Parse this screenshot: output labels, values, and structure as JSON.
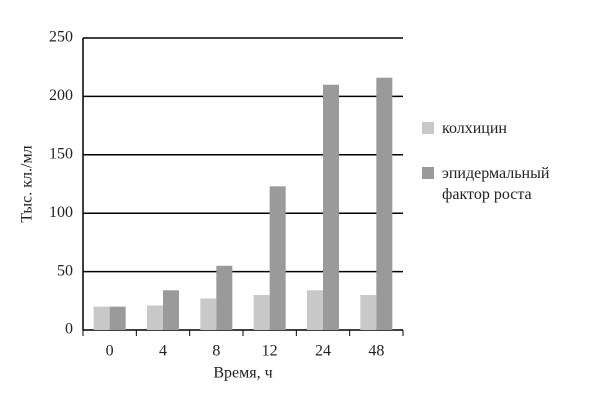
{
  "chart_data": {
    "type": "bar",
    "y_label": "Тыс. кл./мл",
    "x_label": "Время, ч",
    "categories": [
      "0",
      "4",
      "8",
      "12",
      "24",
      "48"
    ],
    "series": [
      {
        "name": "колхицин",
        "color": "#c8c8c8",
        "values": [
          20,
          21,
          27,
          30,
          34,
          30
        ]
      },
      {
        "name": "эпидермальный фактор роста",
        "color": "#9a9a9a",
        "values": [
          20,
          34,
          55,
          123,
          210,
          216
        ]
      }
    ],
    "ylim": [
      0,
      250
    ],
    "yticks": [
      0,
      50,
      100,
      150,
      200,
      250
    ],
    "grid": true
  }
}
